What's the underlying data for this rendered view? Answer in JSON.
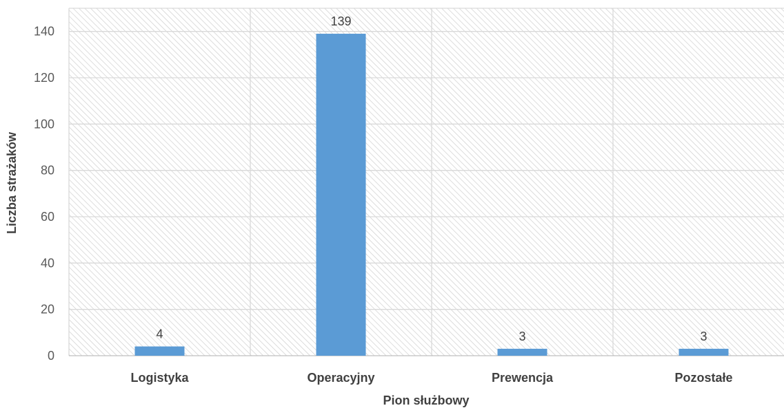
{
  "chart_data": {
    "type": "bar",
    "categories": [
      "Logistyka",
      "Operacyjny",
      "Prewencja",
      "Pozostałe"
    ],
    "values": [
      4,
      139,
      3,
      3
    ],
    "title": "",
    "xlabel": "Pion służbowy",
    "ylabel": "Liczba strażaków",
    "ylim": [
      0,
      150
    ],
    "yticks": [
      0,
      20,
      40,
      60,
      80,
      100,
      120,
      140
    ],
    "data_labels": true,
    "grid": true,
    "plot_background": "hatched",
    "colors": {
      "bar": "#5b9bd5",
      "grid": "#d9d9d9",
      "hatch": "#d0d0d0"
    }
  }
}
